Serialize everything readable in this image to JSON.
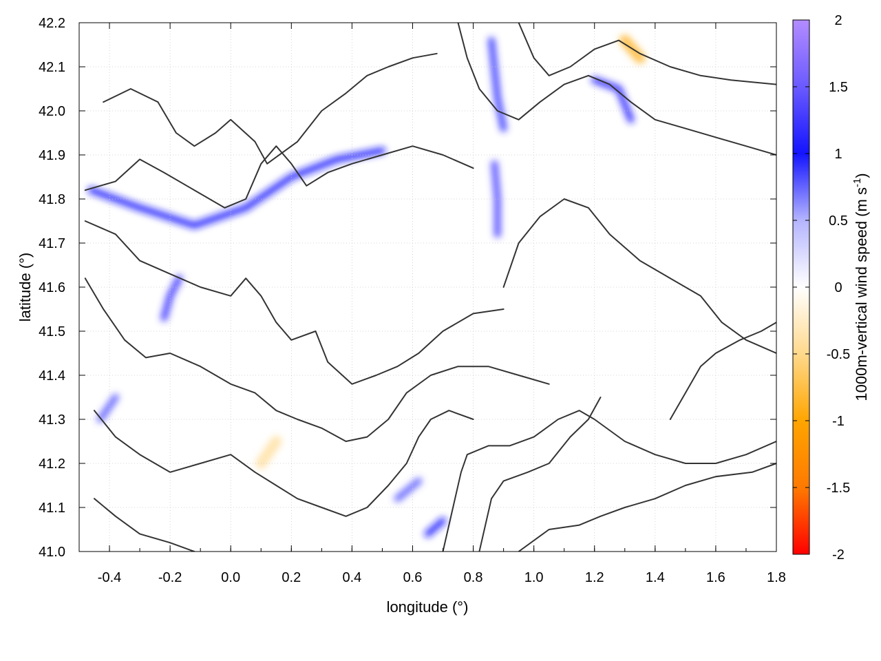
{
  "chart_data": {
    "type": "heatmap",
    "title": "",
    "xlabel": "longitude (°)",
    "ylabel": "latitude (°)",
    "xlim": [
      -0.5,
      1.8
    ],
    "ylim": [
      41.0,
      42.2
    ],
    "x_ticks": [
      -0.4,
      -0.2,
      0.0,
      0.2,
      0.4,
      0.6,
      0.8,
      1.0,
      1.2,
      1.4,
      1.6,
      1.8
    ],
    "x_tick_labels": [
      "-0.4",
      "-0.2",
      "0.0",
      "0.2",
      "0.4",
      "0.6",
      "0.8",
      "1.0",
      "1.2",
      "1.4",
      "1.6",
      "1.8"
    ],
    "y_ticks": [
      41.0,
      41.1,
      41.2,
      41.3,
      41.4,
      41.5,
      41.6,
      41.7,
      41.8,
      41.9,
      42.0,
      42.1,
      42.2
    ],
    "y_tick_labels": [
      "41.0",
      "41.1",
      "41.2",
      "41.3",
      "41.4",
      "41.5",
      "41.6",
      "41.7",
      "41.8",
      "41.9",
      "42.0",
      "42.1",
      "42.2"
    ],
    "grid": true,
    "colorbar": {
      "label": "1000m-vertical wind speed (m s",
      "label_sup": "-1",
      "label_end": ")",
      "range": [
        -2,
        2
      ],
      "ticks": [
        2,
        1.5,
        1,
        0.5,
        0,
        -0.5,
        -1,
        -1.5,
        -2
      ],
      "tick_labels": [
        "2",
        "1.5",
        "1",
        "0.5",
        "0",
        "-0.5",
        "-1",
        "-1.5",
        "-2"
      ],
      "colors": [
        "#ff0000",
        "#ff7a00",
        "#ffa500",
        "#ffd98c",
        "#ffffff",
        "#b4b4ff",
        "#1414ff",
        "#6a5aff",
        "#b38cff"
      ]
    },
    "features": {
      "updraft_bands": [
        {
          "points": [
            [
              -0.46,
              41.82
            ],
            [
              -0.3,
              41.78
            ],
            [
              -0.12,
              41.74
            ],
            [
              0.05,
              41.78
            ],
            [
              0.2,
              41.85
            ],
            [
              0.35,
              41.89
            ],
            [
              0.5,
              41.91
            ]
          ],
          "value": 1.0
        },
        {
          "points": [
            [
              -0.22,
              41.53
            ],
            [
              -0.2,
              41.58
            ],
            [
              -0.17,
              41.62
            ]
          ],
          "value": 1.2
        },
        {
          "points": [
            [
              0.88,
              41.72
            ],
            [
              0.88,
              41.8
            ],
            [
              0.87,
              41.88
            ]
          ],
          "value": 1.3
        },
        {
          "points": [
            [
              0.86,
              42.16
            ],
            [
              0.88,
              42.03
            ],
            [
              0.9,
              41.96
            ]
          ],
          "value": 0.9
        },
        {
          "points": [
            [
              1.2,
              42.07
            ],
            [
              1.28,
              42.05
            ],
            [
              1.32,
              41.98
            ]
          ],
          "value": 1.1
        },
        {
          "points": [
            [
              -0.43,
              41.3
            ],
            [
              -0.38,
              41.35
            ]
          ],
          "value": 0.8
        },
        {
          "points": [
            [
              0.55,
              41.12
            ],
            [
              0.62,
              41.16
            ]
          ],
          "value": 0.8
        },
        {
          "points": [
            [
              0.65,
              41.04
            ],
            [
              0.7,
              41.07
            ]
          ],
          "value": 1.0
        }
      ],
      "downdraft_spots": [
        {
          "points": [
            [
              1.3,
              42.16
            ],
            [
              1.35,
              42.12
            ]
          ],
          "value": -0.8
        },
        {
          "points": [
            [
              0.1,
              41.2
            ],
            [
              0.15,
              41.25
            ]
          ],
          "value": -0.4
        }
      ]
    },
    "contours": [
      [
        [
          -0.42,
          42.02
        ],
        [
          -0.33,
          42.05
        ],
        [
          -0.24,
          42.02
        ],
        [
          -0.18,
          41.95
        ],
        [
          -0.12,
          41.92
        ],
        [
          -0.05,
          41.95
        ],
        [
          0.0,
          41.98
        ],
        [
          0.08,
          41.93
        ],
        [
          0.12,
          41.88
        ],
        [
          0.22,
          41.93
        ],
        [
          0.3,
          42.0
        ],
        [
          0.38,
          42.04
        ],
        [
          0.45,
          42.08
        ],
        [
          0.52,
          42.1
        ],
        [
          0.6,
          42.12
        ],
        [
          0.68,
          42.13
        ]
      ],
      [
        [
          -0.48,
          41.82
        ],
        [
          -0.38,
          41.84
        ],
        [
          -0.3,
          41.89
        ],
        [
          -0.22,
          41.86
        ],
        [
          -0.12,
          41.82
        ],
        [
          -0.02,
          41.78
        ],
        [
          0.05,
          41.8
        ],
        [
          0.1,
          41.88
        ],
        [
          0.15,
          41.92
        ],
        [
          0.2,
          41.88
        ],
        [
          0.25,
          41.83
        ],
        [
          0.32,
          41.86
        ],
        [
          0.4,
          41.88
        ],
        [
          0.5,
          41.9
        ],
        [
          0.6,
          41.92
        ],
        [
          0.7,
          41.9
        ],
        [
          0.8,
          41.87
        ]
      ],
      [
        [
          -0.48,
          41.75
        ],
        [
          -0.38,
          41.72
        ],
        [
          -0.3,
          41.66
        ],
        [
          -0.2,
          41.63
        ],
        [
          -0.1,
          41.6
        ],
        [
          0.0,
          41.58
        ],
        [
          0.05,
          41.62
        ],
        [
          0.1,
          41.58
        ],
        [
          0.15,
          41.52
        ],
        [
          0.2,
          41.48
        ],
        [
          0.28,
          41.5
        ],
        [
          0.32,
          41.43
        ],
        [
          0.4,
          41.38
        ],
        [
          0.48,
          41.4
        ],
        [
          0.55,
          41.42
        ],
        [
          0.62,
          41.45
        ],
        [
          0.7,
          41.5
        ],
        [
          0.8,
          41.54
        ],
        [
          0.9,
          41.55
        ]
      ],
      [
        [
          -0.48,
          41.62
        ],
        [
          -0.42,
          41.55
        ],
        [
          -0.35,
          41.48
        ],
        [
          -0.28,
          41.44
        ],
        [
          -0.2,
          41.45
        ],
        [
          -0.1,
          41.42
        ],
        [
          0.0,
          41.38
        ],
        [
          0.08,
          41.36
        ],
        [
          0.15,
          41.32
        ],
        [
          0.22,
          41.3
        ],
        [
          0.3,
          41.28
        ],
        [
          0.38,
          41.25
        ],
        [
          0.45,
          41.26
        ],
        [
          0.52,
          41.3
        ],
        [
          0.58,
          41.36
        ],
        [
          0.66,
          41.4
        ],
        [
          0.75,
          41.42
        ],
        [
          0.85,
          41.42
        ],
        [
          0.95,
          41.4
        ],
        [
          1.05,
          41.38
        ]
      ],
      [
        [
          -0.45,
          41.32
        ],
        [
          -0.38,
          41.26
        ],
        [
          -0.3,
          41.22
        ],
        [
          -0.2,
          41.18
        ],
        [
          -0.1,
          41.2
        ],
        [
          0.0,
          41.22
        ],
        [
          0.08,
          41.18
        ],
        [
          0.15,
          41.15
        ],
        [
          0.22,
          41.12
        ],
        [
          0.3,
          41.1
        ],
        [
          0.38,
          41.08
        ],
        [
          0.45,
          41.1
        ],
        [
          0.52,
          41.15
        ],
        [
          0.58,
          41.2
        ],
        [
          0.62,
          41.26
        ],
        [
          0.66,
          41.3
        ],
        [
          0.72,
          41.32
        ],
        [
          0.8,
          41.3
        ]
      ],
      [
        [
          -0.45,
          41.12
        ],
        [
          -0.38,
          41.08
        ],
        [
          -0.3,
          41.04
        ],
        [
          -0.2,
          41.02
        ],
        [
          -0.12,
          41.0
        ]
      ],
      [
        [
          0.7,
          41.0
        ],
        [
          0.72,
          41.06
        ],
        [
          0.74,
          41.12
        ],
        [
          0.76,
          41.18
        ],
        [
          0.78,
          41.22
        ],
        [
          0.85,
          41.24
        ],
        [
          0.92,
          41.24
        ],
        [
          1.0,
          41.26
        ],
        [
          1.08,
          41.3
        ],
        [
          1.15,
          41.32
        ],
        [
          1.2,
          41.3
        ],
        [
          1.3,
          41.25
        ],
        [
          1.4,
          41.22
        ],
        [
          1.5,
          41.2
        ],
        [
          1.6,
          41.2
        ],
        [
          1.7,
          41.22
        ],
        [
          1.8,
          41.25
        ]
      ],
      [
        [
          0.95,
          41.0
        ],
        [
          1.05,
          41.05
        ],
        [
          1.15,
          41.06
        ],
        [
          1.22,
          41.08
        ],
        [
          1.3,
          41.1
        ],
        [
          1.4,
          41.12
        ],
        [
          1.5,
          41.15
        ],
        [
          1.6,
          41.17
        ],
        [
          1.72,
          41.18
        ],
        [
          1.8,
          41.2
        ]
      ],
      [
        [
          0.82,
          41.0
        ],
        [
          0.84,
          41.06
        ],
        [
          0.86,
          41.12
        ],
        [
          0.9,
          41.16
        ],
        [
          0.98,
          41.18
        ],
        [
          1.05,
          41.2
        ],
        [
          1.12,
          41.26
        ],
        [
          1.18,
          41.3
        ],
        [
          1.22,
          41.35
        ]
      ],
      [
        [
          0.9,
          41.6
        ],
        [
          0.95,
          41.7
        ],
        [
          1.02,
          41.76
        ],
        [
          1.1,
          41.8
        ],
        [
          1.18,
          41.78
        ],
        [
          1.25,
          41.72
        ],
        [
          1.35,
          41.66
        ],
        [
          1.45,
          41.62
        ],
        [
          1.55,
          41.58
        ],
        [
          1.62,
          41.52
        ],
        [
          1.7,
          41.48
        ],
        [
          1.8,
          41.45
        ]
      ],
      [
        [
          0.75,
          42.2
        ],
        [
          0.78,
          42.12
        ],
        [
          0.82,
          42.05
        ],
        [
          0.88,
          42.0
        ],
        [
          0.95,
          41.98
        ],
        [
          1.02,
          42.02
        ],
        [
          1.1,
          42.06
        ],
        [
          1.18,
          42.08
        ],
        [
          1.25,
          42.06
        ],
        [
          1.32,
          42.02
        ],
        [
          1.4,
          41.98
        ],
        [
          1.5,
          41.96
        ],
        [
          1.6,
          41.94
        ],
        [
          1.7,
          41.92
        ],
        [
          1.8,
          41.9
        ]
      ],
      [
        [
          0.95,
          42.2
        ],
        [
          1.0,
          42.12
        ],
        [
          1.05,
          42.08
        ],
        [
          1.12,
          42.1
        ],
        [
          1.2,
          42.14
        ],
        [
          1.28,
          42.16
        ],
        [
          1.35,
          42.13
        ],
        [
          1.45,
          42.1
        ],
        [
          1.55,
          42.08
        ],
        [
          1.65,
          42.07
        ],
        [
          1.8,
          42.06
        ]
      ],
      [
        [
          1.45,
          41.3
        ],
        [
          1.5,
          41.36
        ],
        [
          1.55,
          41.42
        ],
        [
          1.6,
          41.45
        ],
        [
          1.68,
          41.48
        ],
        [
          1.75,
          41.5
        ],
        [
          1.8,
          41.52
        ]
      ]
    ]
  }
}
